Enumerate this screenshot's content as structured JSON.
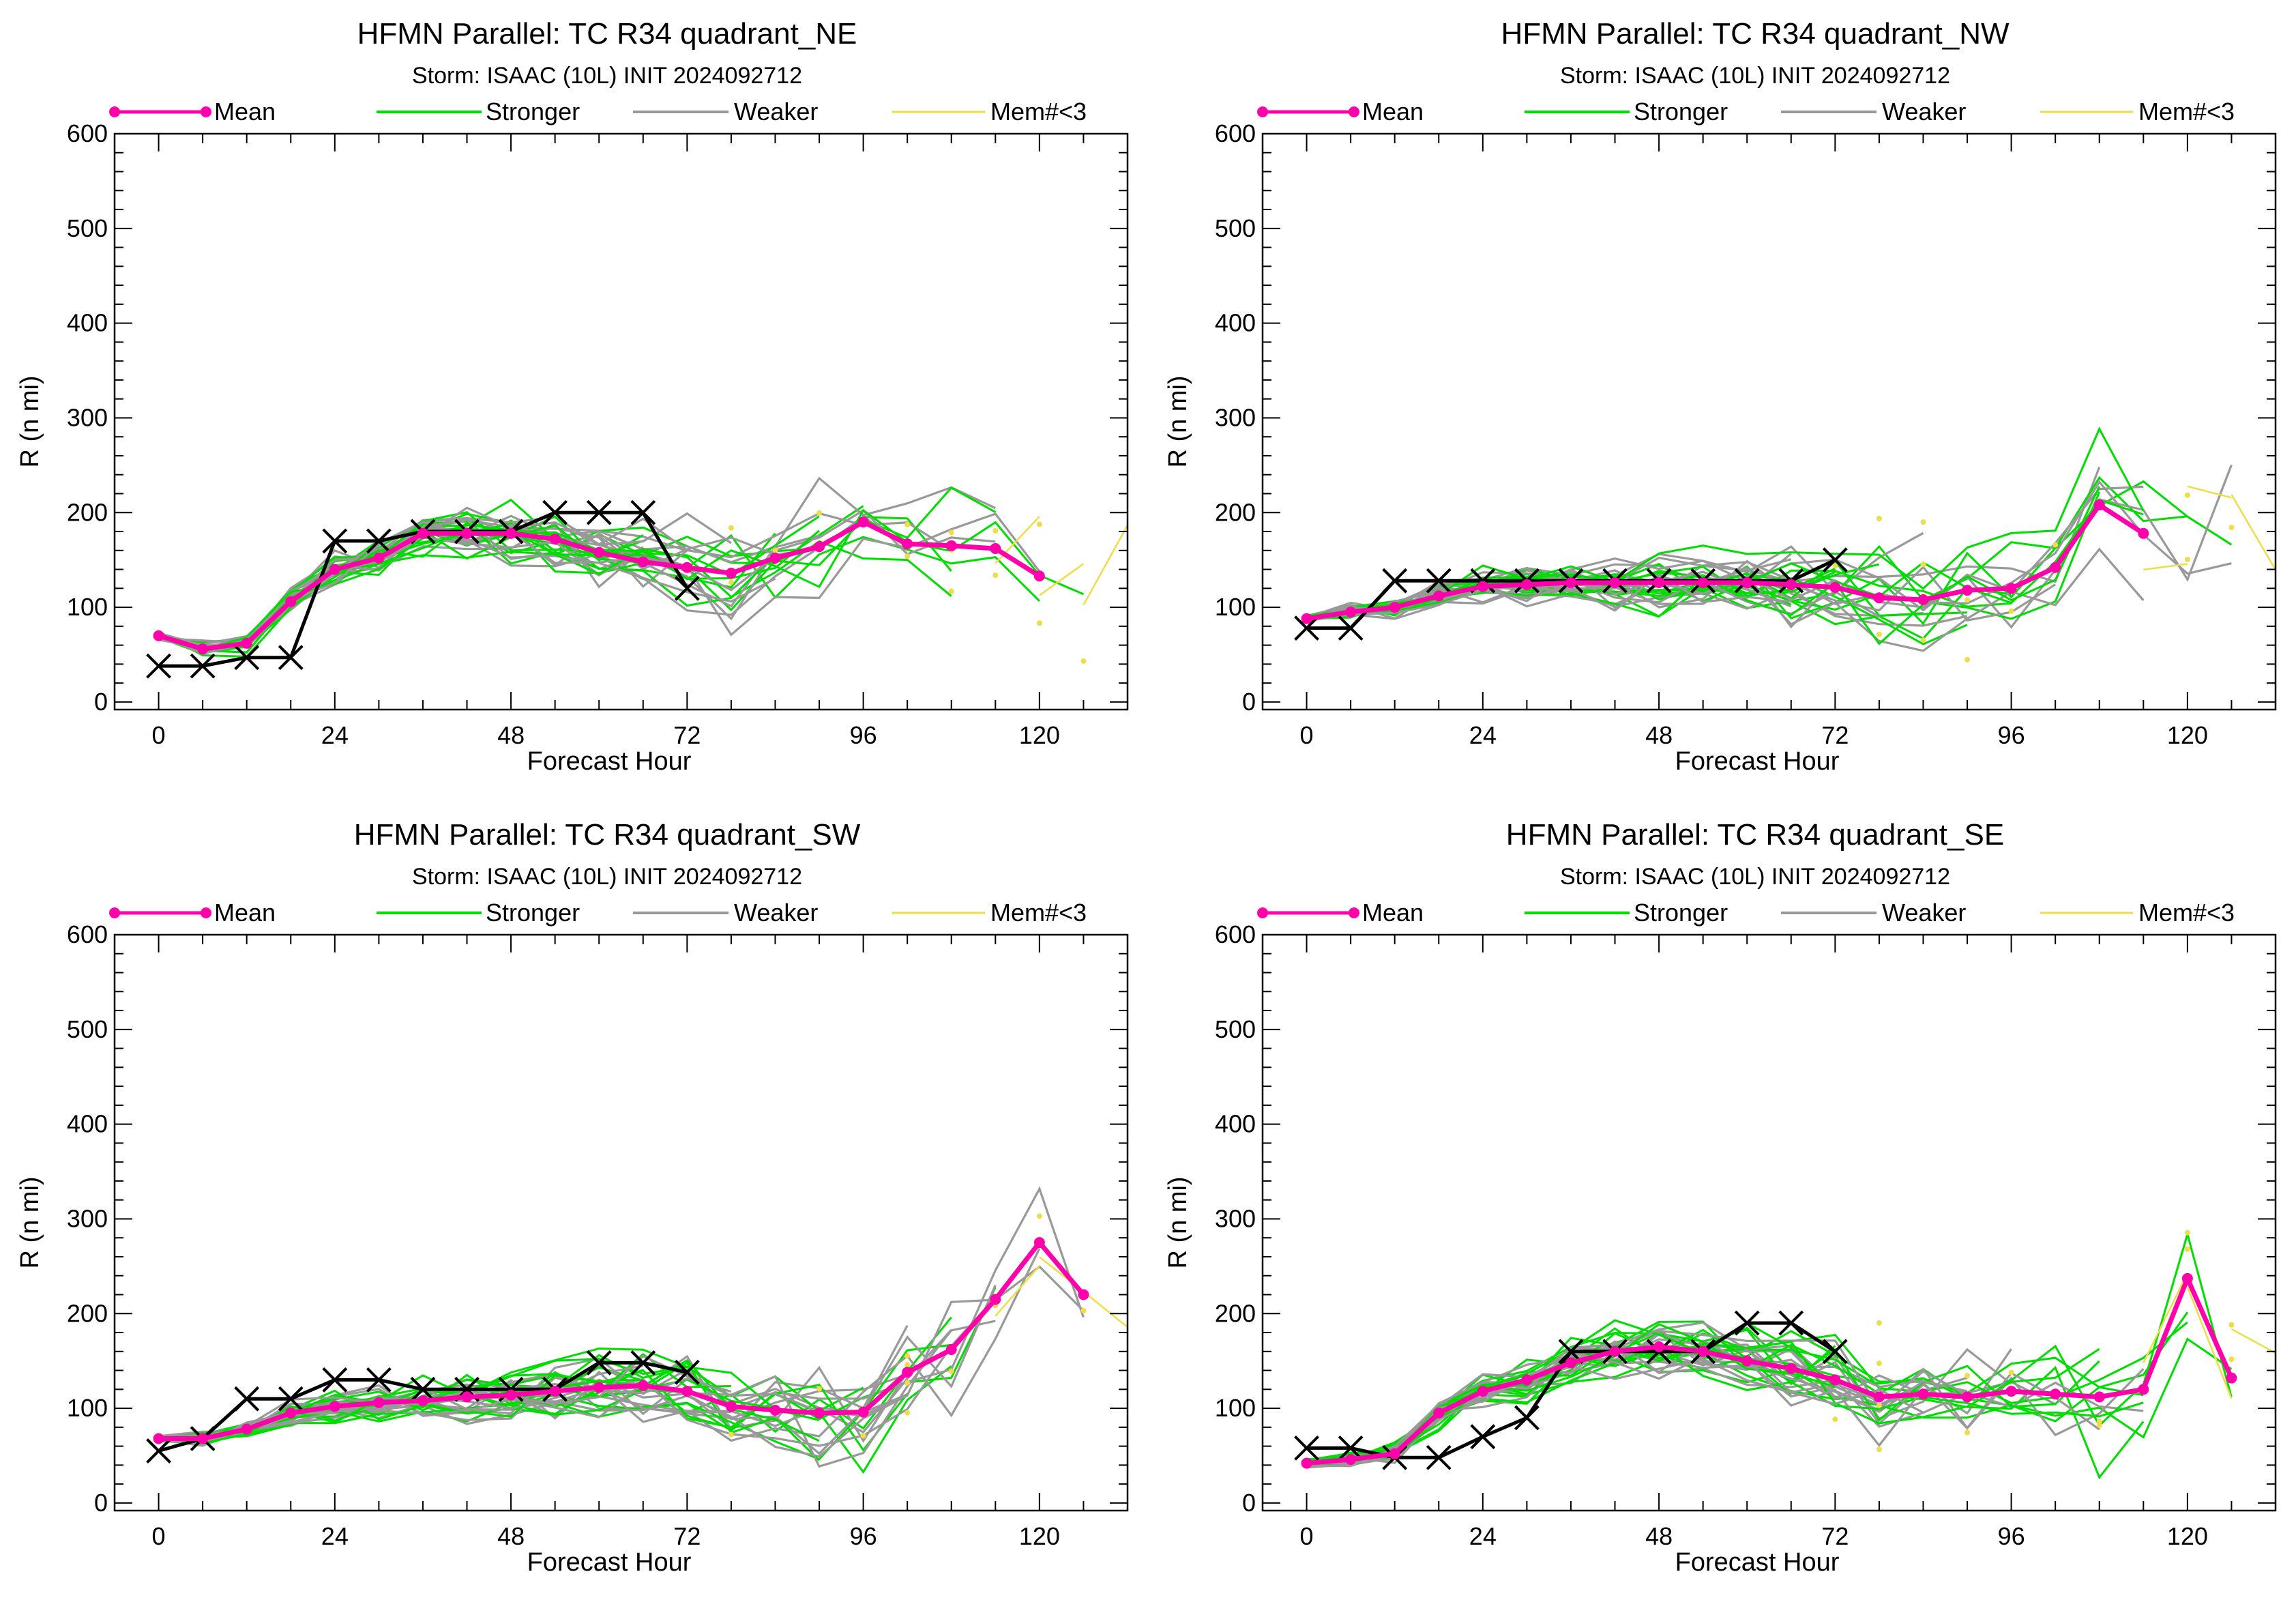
{
  "legend": {
    "mean": "Mean",
    "stronger": "Stronger",
    "weaker": "Weaker",
    "few_members": "Mem#<3"
  },
  "colors": {
    "mean": "#ff00aa",
    "stronger": "#00dd00",
    "weaker": "#999999",
    "few_members": "#eedd44",
    "best_track": "#000000"
  },
  "chart_data": [
    {
      "type": "line",
      "title": "HFMN Parallel: TC  R34 quadrant_NE",
      "subtitle": "Storm: ISAAC (10L) INIT 2024092712",
      "xlabel": "Forecast Hour",
      "ylabel": "R (n mi)",
      "xlim": [
        -6,
        132
      ],
      "ylim": [
        -8,
        600
      ],
      "xticks": [
        0,
        24,
        48,
        72,
        96,
        120
      ],
      "yticks": [
        0,
        100,
        200,
        300,
        400,
        500,
        600
      ],
      "legend_position": "top",
      "series": [
        {
          "name": "Mean",
          "x": [
            0,
            6,
            12,
            18,
            24,
            30,
            36,
            42,
            48,
            54,
            60,
            66,
            72,
            78,
            84,
            90,
            96,
            102,
            108,
            114,
            120
          ],
          "y": [
            70,
            56,
            62,
            106,
            140,
            152,
            178,
            178,
            178,
            172,
            158,
            148,
            142,
            136,
            152,
            164,
            190,
            167,
            165,
            162,
            133
          ]
        },
        {
          "x": [
            0,
            6,
            12,
            18,
            24,
            30,
            36,
            42,
            48,
            54,
            60,
            66,
            72
          ],
          "y": [
            38,
            38,
            47,
            47,
            170,
            170,
            180,
            180,
            180,
            200,
            200,
            200,
            120
          ]
        }
      ]
    },
    {
      "type": "line",
      "title": "HFMN Parallel: TC  R34 quadrant_NW",
      "subtitle": "Storm: ISAAC (10L) INIT 2024092712",
      "xlabel": "Forecast Hour",
      "ylabel": "R (n mi)",
      "xlim": [
        -6,
        132
      ],
      "ylim": [
        -8,
        600
      ],
      "xticks": [
        0,
        24,
        48,
        72,
        96,
        120
      ],
      "yticks": [
        0,
        100,
        200,
        300,
        400,
        500,
        600
      ],
      "legend_position": "top",
      "series": [
        {
          "name": "Mean",
          "x": [
            0,
            6,
            12,
            18,
            24,
            30,
            36,
            42,
            48,
            54,
            60,
            66,
            72,
            78,
            84,
            90,
            96,
            102,
            108,
            114
          ],
          "y": [
            88,
            95,
            100,
            112,
            122,
            124,
            126,
            126,
            126,
            126,
            126,
            124,
            121,
            110,
            108,
            118,
            120,
            142,
            208,
            178
          ]
        },
        {
          "x": [
            0,
            6,
            12,
            18,
            24,
            30,
            36,
            42,
            48,
            54,
            60,
            66,
            72
          ],
          "y": [
            78,
            78,
            128,
            128,
            128,
            128,
            128,
            128,
            128,
            128,
            128,
            128,
            150
          ]
        }
      ]
    },
    {
      "type": "line",
      "title": "HFMN Parallel: TC  R34 quadrant_SW",
      "subtitle": "Storm: ISAAC (10L) INIT 2024092712",
      "xlabel": "Forecast Hour",
      "ylabel": "R (n mi)",
      "xlim": [
        -6,
        132
      ],
      "ylim": [
        -8,
        600
      ],
      "xticks": [
        0,
        24,
        48,
        72,
        96,
        120
      ],
      "yticks": [
        0,
        100,
        200,
        300,
        400,
        500,
        600
      ],
      "legend_position": "top",
      "series": [
        {
          "name": "Mean",
          "x": [
            0,
            6,
            12,
            18,
            24,
            30,
            36,
            42,
            48,
            54,
            60,
            66,
            72,
            78,
            84,
            90,
            96,
            102,
            108,
            114,
            120,
            126
          ],
          "y": [
            68,
            68,
            78,
            95,
            102,
            106,
            108,
            112,
            114,
            118,
            122,
            124,
            118,
            102,
            98,
            95,
            96,
            138,
            162,
            215,
            275,
            220
          ]
        },
        {
          "x": [
            0,
            6,
            12,
            18,
            24,
            30,
            36,
            42,
            48,
            54,
            60,
            66,
            72
          ],
          "y": [
            55,
            68,
            110,
            110,
            130,
            130,
            120,
            120,
            120,
            120,
            148,
            148,
            138
          ]
        }
      ]
    },
    {
      "type": "line",
      "title": "HFMN Parallel: TC  R34 quadrant_SE",
      "subtitle": "Storm: ISAAC (10L) INIT 2024092712",
      "xlabel": "Forecast Hour",
      "ylabel": "R (n mi)",
      "xlim": [
        -6,
        132
      ],
      "ylim": [
        -8,
        600
      ],
      "xticks": [
        0,
        24,
        48,
        72,
        96,
        120
      ],
      "yticks": [
        0,
        100,
        200,
        300,
        400,
        500,
        600
      ],
      "legend_position": "top",
      "series": [
        {
          "name": "Mean",
          "x": [
            0,
            6,
            12,
            18,
            24,
            30,
            36,
            42,
            48,
            54,
            60,
            66,
            72,
            78,
            84,
            90,
            96,
            102,
            108,
            114,
            120,
            126
          ],
          "y": [
            42,
            46,
            52,
            95,
            118,
            130,
            148,
            160,
            165,
            160,
            150,
            142,
            130,
            112,
            115,
            112,
            118,
            115,
            112,
            120,
            237,
            132
          ]
        },
        {
          "x": [
            0,
            6,
            12,
            18,
            24,
            30,
            36,
            42,
            48,
            54,
            60,
            66,
            72
          ],
          "y": [
            58,
            58,
            48,
            48,
            70,
            90,
            160,
            160,
            160,
            160,
            190,
            190,
            160
          ]
        }
      ]
    }
  ]
}
